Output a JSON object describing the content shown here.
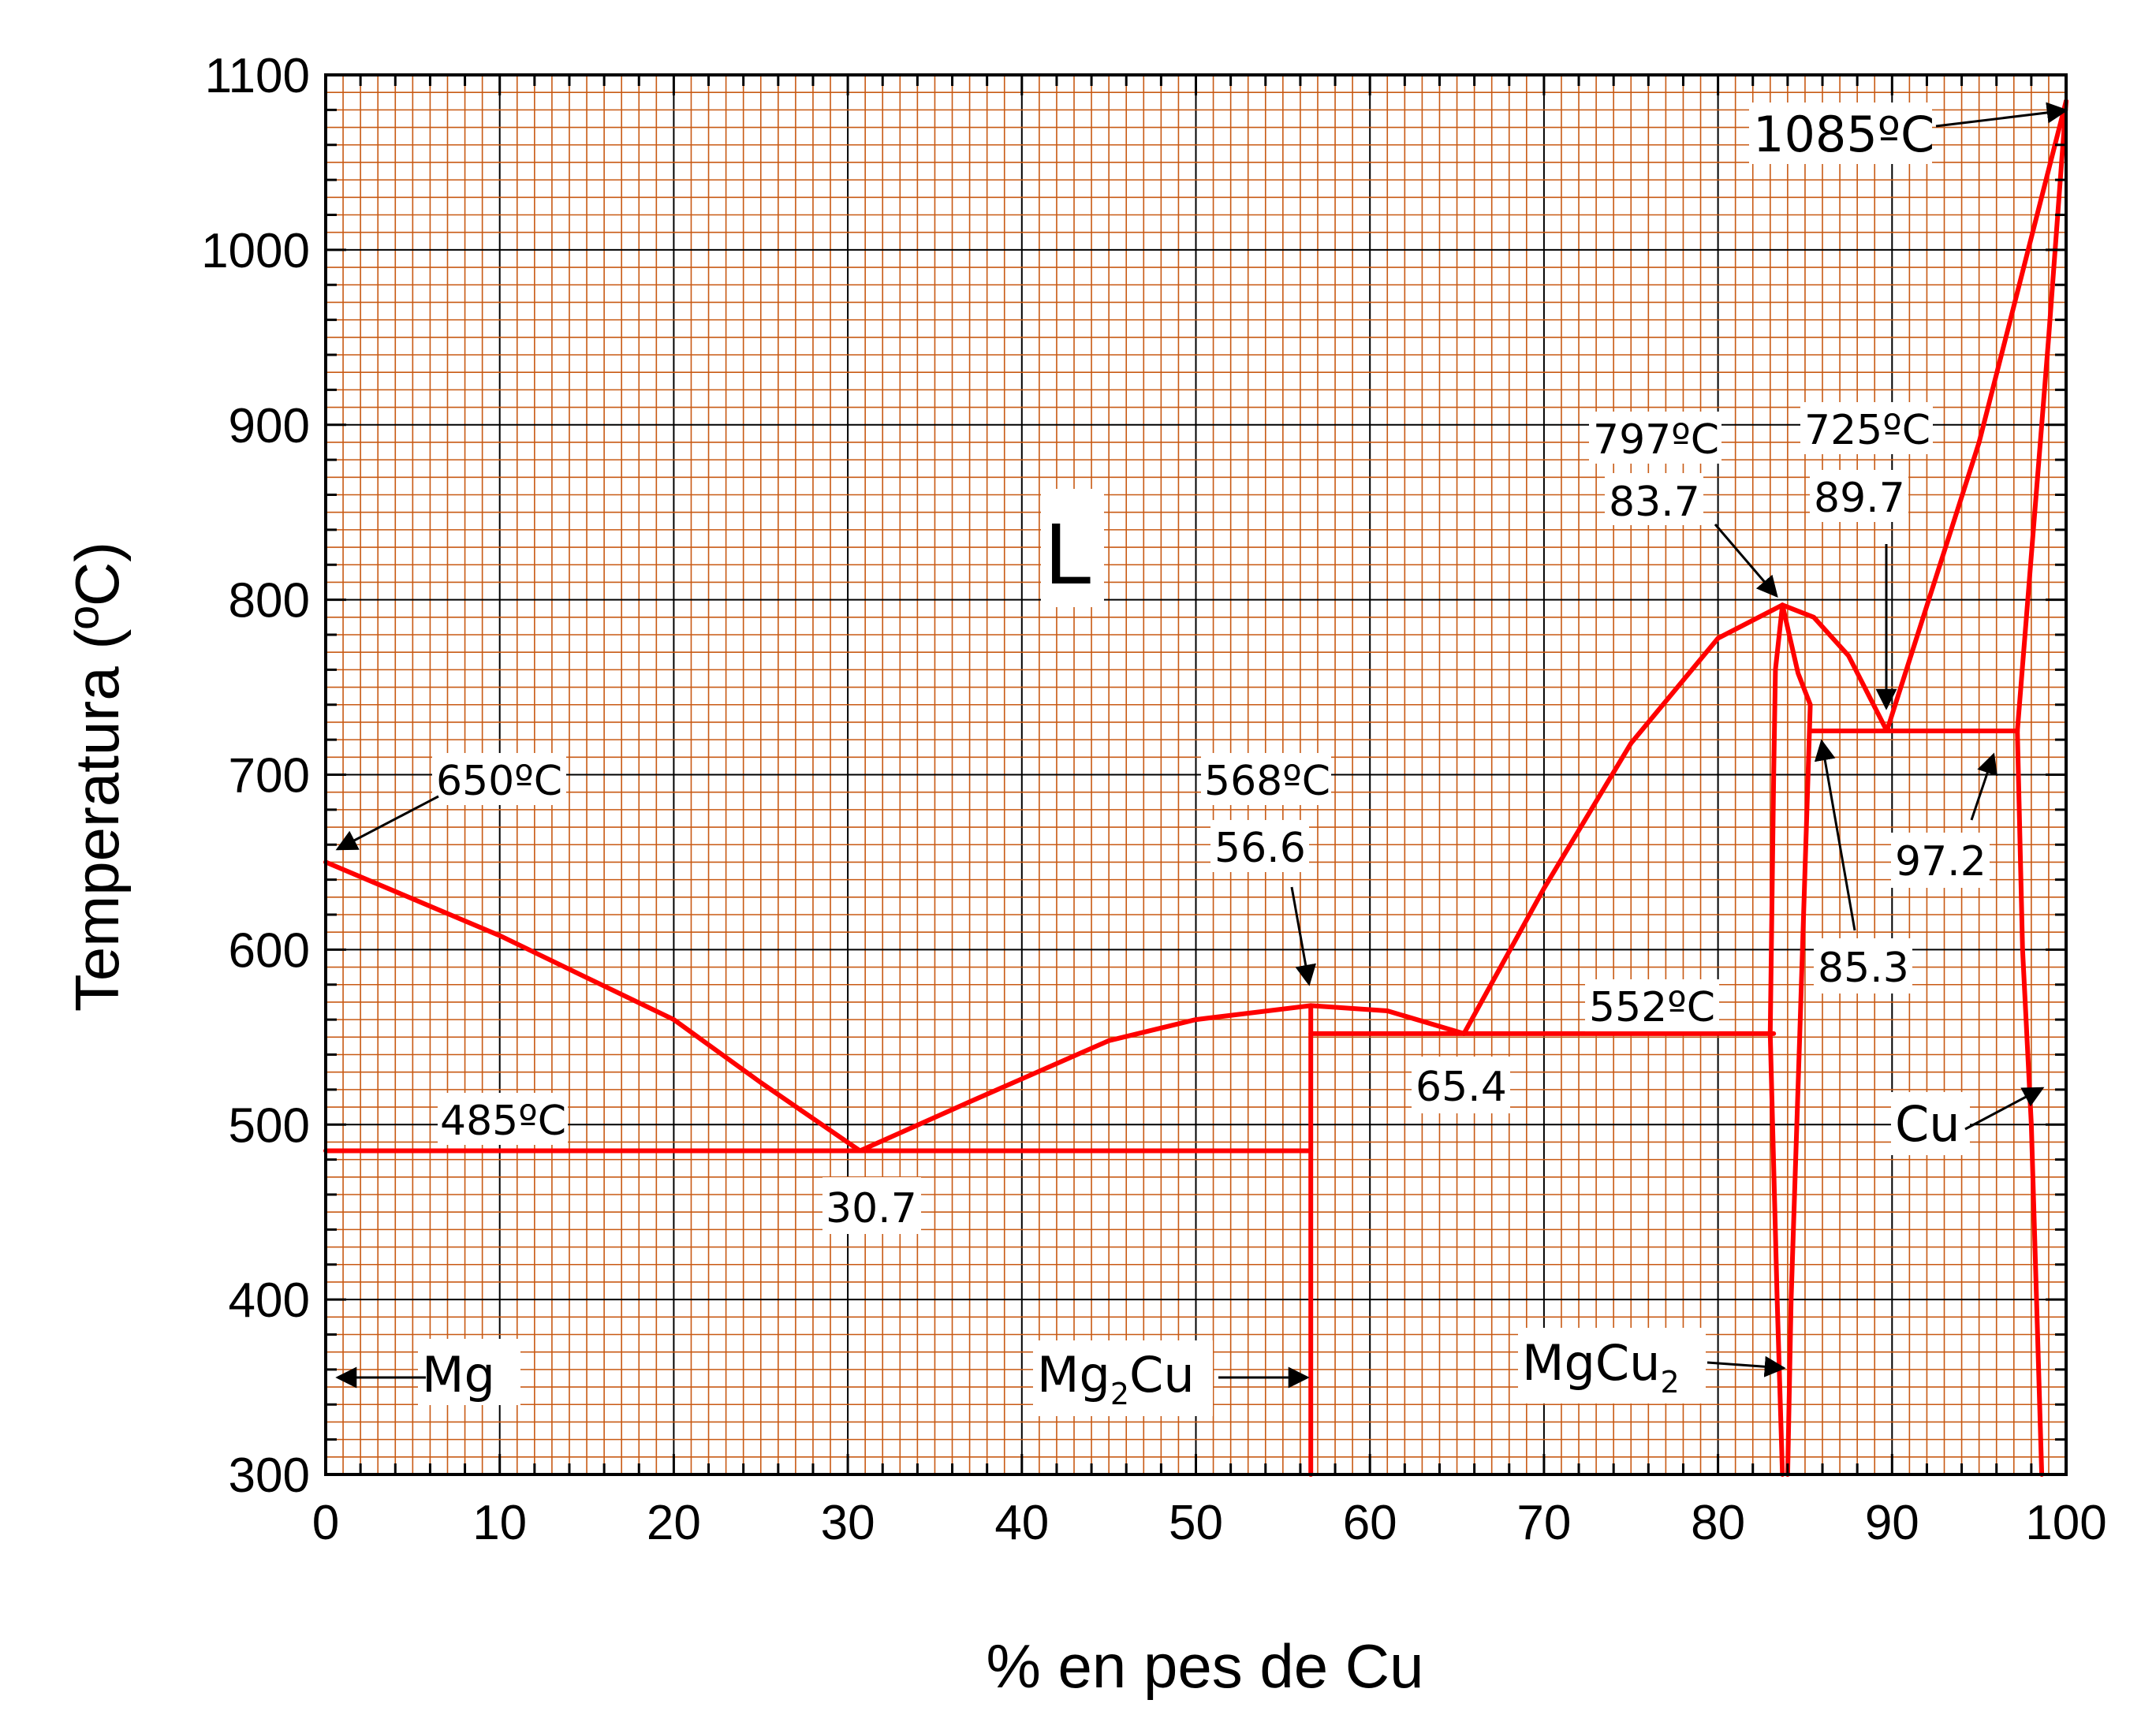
{
  "chart_data": {
    "type": "line",
    "xlabel": "% en pes de Cu",
    "ylabel": "Temperatura (ºC)",
    "xlim": [
      0,
      100
    ],
    "ylim": [
      300,
      1100
    ],
    "x_ticks": [
      "0",
      "10",
      "20",
      "30",
      "40",
      "50",
      "60",
      "70",
      "80",
      "90",
      "100"
    ],
    "y_ticks": [
      "300",
      "400",
      "500",
      "600",
      "700",
      "800",
      "900",
      "1000",
      "1100"
    ],
    "grid": true,
    "colors": {
      "curve": "#ff0000",
      "grid_minor": "#c85a14",
      "grid_major": "#000000"
    },
    "series": [
      {
        "x": [
          0,
          10,
          15,
          20,
          25,
          30.7
        ],
        "y": [
          650,
          608,
          584,
          560,
          524,
          485
        ]
      },
      {
        "x": [
          30.7,
          37,
          45,
          50,
          56.6
        ],
        "y": [
          485,
          513,
          548,
          560,
          568
        ]
      },
      {
        "x": [
          56.6,
          61,
          65.4
        ],
        "y": [
          568,
          565,
          552
        ]
      },
      {
        "x": [
          65.4,
          70,
          75,
          80,
          83.7
        ],
        "y": [
          552,
          635,
          718,
          778,
          797
        ]
      },
      {
        "x": [
          83.7,
          85.5,
          87.5,
          89.7
        ],
        "y": [
          797,
          790,
          768,
          725
        ]
      },
      {
        "x": [
          89.7,
          95,
          100
        ],
        "y": [
          725,
          890,
          1085
        ]
      },
      {
        "x": [
          0,
          56.6
        ],
        "y": [
          485,
          485
        ]
      },
      {
        "x": [
          56.6,
          83.2
        ],
        "y": [
          552,
          552
        ]
      },
      {
        "x": [
          85.3,
          97.2
        ],
        "y": [
          725,
          725
        ]
      },
      {
        "x": [
          56.6,
          56.6
        ],
        "y": [
          300,
          568
        ]
      },
      {
        "x": [
          83.7,
          83.3,
          83.2,
          83.0,
          83.4,
          83.7
        ],
        "y": [
          797,
          760,
          700,
          552,
          400,
          300
        ]
      },
      {
        "x": [
          83.7,
          84.6,
          85.3,
          84.7,
          84.2,
          84.0
        ],
        "y": [
          797,
          758,
          740,
          552,
          400,
          300
        ]
      },
      {
        "x": [
          97.2,
          97.5,
          98.0,
          98.3,
          98.6
        ],
        "y": [
          725,
          600,
          500,
          400,
          300
        ]
      },
      {
        "x": [
          97.2,
          99,
          100
        ],
        "y": [
          725,
          950,
          1085
        ]
      }
    ],
    "annotations": [
      {
        "text": "650ºC",
        "x": 0,
        "y": 650
      },
      {
        "text": "485ºC",
        "x": 10,
        "y": 485
      },
      {
        "text": "30.7",
        "x": 30.7,
        "y": 485
      },
      {
        "text": "568ºC",
        "x": 56.6,
        "y": 568
      },
      {
        "text": "56.6",
        "x": 56.6,
        "y": 568
      },
      {
        "text": "65.4",
        "x": 65.4,
        "y": 552
      },
      {
        "text": "552ºC",
        "x": 79,
        "y": 552
      },
      {
        "text": "797ºC",
        "x": 83.7,
        "y": 797
      },
      {
        "text": "83.7",
        "x": 83.7,
        "y": 797
      },
      {
        "text": "725ºC",
        "x": 89.7,
        "y": 725
      },
      {
        "text": "89.7",
        "x": 89.7,
        "y": 725
      },
      {
        "text": "85.3",
        "x": 85.3,
        "y": 725
      },
      {
        "text": "97.2",
        "x": 97.2,
        "y": 725
      },
      {
        "text": "1085ºC",
        "x": 100,
        "y": 1085
      },
      {
        "text": "L",
        "x": 43,
        "y": 830
      },
      {
        "text": "Mg",
        "x": 0,
        "y": 355
      },
      {
        "text": "Mg",
        "sub": "2",
        "text2": "Cu",
        "x": 56.6,
        "y": 355
      },
      {
        "text": "MgCu",
        "sub": "2",
        "x": 83.7,
        "y": 362
      },
      {
        "text": "Cu",
        "x": 98,
        "y": 520
      }
    ]
  },
  "labels": {
    "xlabel": "% en pes de Cu",
    "ylabel": "Temperatura (ºC)",
    "t650": "650ºC",
    "t485": "485ºC",
    "c307": "30.7",
    "t568": "568ºC",
    "c566": "56.6",
    "c654": "65.4",
    "t552": "552ºC",
    "t797": "797ºC",
    "c837": "83.7",
    "t725": "725ºC",
    "c897": "89.7",
    "c853": "85.3",
    "c972": "97.2",
    "t1085": "1085ºC",
    "region_l": "L",
    "mg": "Mg",
    "mg2cu_a": "Mg",
    "mg2cu_sub": "2",
    "mg2cu_b": "Cu",
    "mgcu2_a": "MgCu",
    "mgcu2_sub": "2",
    "cu": "Cu"
  }
}
